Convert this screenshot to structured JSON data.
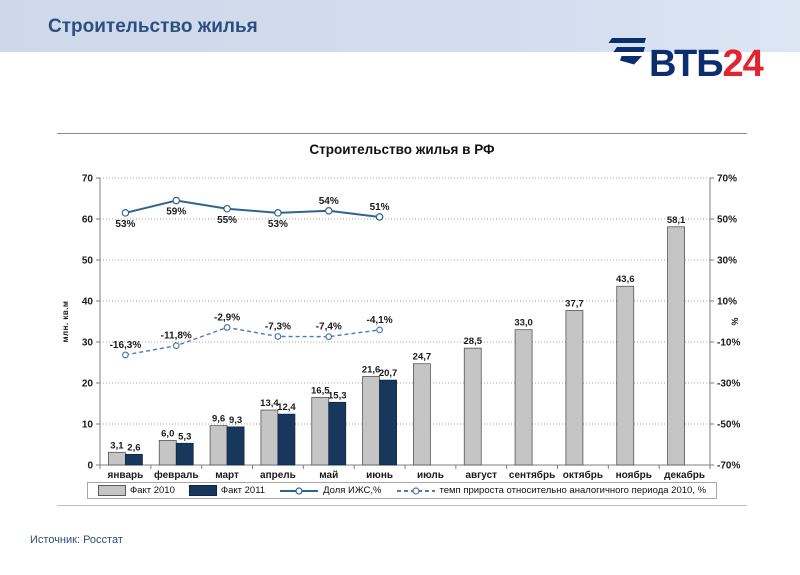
{
  "header": {
    "title": "Строительство жилья",
    "logo": {
      "blue": "ВТБ",
      "red": "24"
    }
  },
  "footer": {
    "source": "Источник: Росстат"
  },
  "colors": {
    "banner_bg": "#cdd9ea",
    "slide_title": "#2d4f80",
    "logo_blue": "#0c2e6e",
    "logo_red": "#e22330",
    "grid": "#a6a6a6",
    "axis": "#7f7f7f",
    "label_text": "#1a1a1a"
  },
  "chart_data": {
    "type": "bar",
    "subtype": "grouped bars + two lines on secondary percent axis",
    "title": "Строительство жилья в РФ",
    "ylabel_left": "млн. кв.м",
    "ylabel_right": "%",
    "grid": "dotted horizontal",
    "legend_position": "bottom",
    "categories": [
      "январь",
      "февраль",
      "март",
      "апрель",
      "май",
      "июнь",
      "июль",
      "август",
      "сентябрь",
      "октябрь",
      "ноябрь",
      "декабрь"
    ],
    "left_axis": {
      "min": 0,
      "max": 70,
      "ticks": [
        0,
        10,
        20,
        30,
        40,
        50,
        60,
        70
      ]
    },
    "right_axis": {
      "min": -70,
      "max": 70,
      "tick_values": [
        70,
        50,
        30,
        10,
        -10,
        -30,
        -50,
        -70
      ],
      "tick_labels": [
        "70%",
        "50%",
        "30%",
        "10%",
        "-10%",
        "-30%",
        "-50%",
        "-70%"
      ]
    },
    "series": [
      {
        "name": "Факт 2010",
        "type": "bar",
        "axis": "left",
        "color": "#c5c5c5",
        "values": [
          3.1,
          6.0,
          9.6,
          13.4,
          16.5,
          21.6,
          24.7,
          28.5,
          33.0,
          37.7,
          43.6,
          58.1
        ],
        "labels": [
          "3,1",
          "6,0",
          "9,6",
          "13,4",
          "16,5",
          "21,6",
          "24,7",
          "28,5",
          "33,0",
          "37,7",
          "43,6",
          "58,1"
        ]
      },
      {
        "name": "Факт 2011",
        "type": "bar",
        "axis": "left",
        "color": "#17375d",
        "values": [
          2.6,
          5.3,
          9.3,
          12.4,
          15.3,
          20.7
        ],
        "labels": [
          "2,6",
          "5,3",
          "9,3",
          "12,4",
          "15,3",
          "20,7"
        ]
      },
      {
        "name": "Доля ИЖС,%",
        "type": "line",
        "axis": "right",
        "color": "#2e6494",
        "values": [
          53,
          59,
          55,
          53,
          54,
          51
        ],
        "labels": [
          "53%",
          "59%",
          "55%",
          "53%",
          "54%",
          "51%"
        ],
        "label_position": [
          "below",
          "below",
          "below",
          "below",
          "above",
          "above"
        ]
      },
      {
        "name": "темп прироста относительно аналогичного периода 2010, %",
        "type": "line-dashed",
        "axis": "right",
        "color": "#4a7caf",
        "values": [
          -16.3,
          -11.8,
          -2.9,
          -7.3,
          -7.4,
          -4.1
        ],
        "labels": [
          "-16,3%",
          "-11,8%",
          "-2,9%",
          "-7,3%",
          "-7,4%",
          "-4,1%"
        ],
        "label_position": [
          "above",
          "above",
          "above",
          "above",
          "above",
          "above"
        ]
      }
    ]
  }
}
